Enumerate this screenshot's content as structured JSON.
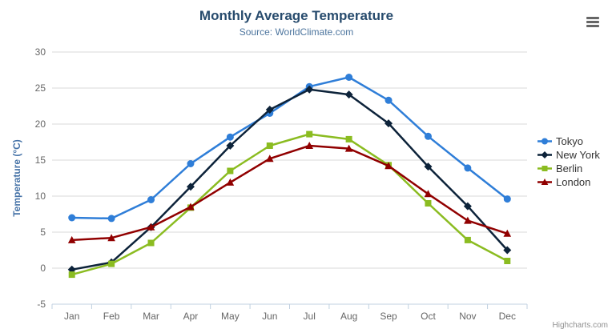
{
  "chart_data": {
    "type": "line",
    "title": "Monthly Average Temperature",
    "subtitle": "Source: WorldClimate.com",
    "xlabel": "",
    "ylabel": "Temperature (°C)",
    "ylim": [
      -5,
      30
    ],
    "yticks": [
      -5,
      0,
      5,
      10,
      15,
      20,
      25,
      30
    ],
    "grid": true,
    "legend_position": "right",
    "categories": [
      "Jan",
      "Feb",
      "Mar",
      "Apr",
      "May",
      "Jun",
      "Jul",
      "Aug",
      "Sep",
      "Oct",
      "Nov",
      "Dec"
    ],
    "series": [
      {
        "name": "Tokyo",
        "color": "#2f7ed8",
        "marker": "circle",
        "values": [
          7.0,
          6.9,
          9.5,
          14.5,
          18.2,
          21.5,
          25.2,
          26.5,
          23.3,
          18.3,
          13.9,
          9.6
        ]
      },
      {
        "name": "New York",
        "color": "#0d233a",
        "marker": "diamond",
        "values": [
          -0.2,
          0.8,
          5.7,
          11.3,
          17.0,
          22.0,
          24.8,
          24.1,
          20.1,
          14.1,
          8.6,
          2.5
        ]
      },
      {
        "name": "Berlin",
        "color": "#8bbc21",
        "marker": "square",
        "values": [
          -0.9,
          0.6,
          3.5,
          8.4,
          13.5,
          17.0,
          18.6,
          17.9,
          14.3,
          9.0,
          3.9,
          1.0
        ]
      },
      {
        "name": "London",
        "color": "#910000",
        "marker": "triangle",
        "values": [
          3.9,
          4.2,
          5.7,
          8.5,
          11.9,
          15.2,
          17.0,
          16.6,
          14.2,
          10.3,
          6.6,
          4.8
        ]
      }
    ]
  },
  "credits": {
    "text": "Highcharts.com"
  },
  "colors": {
    "grid": "#d8d8d8",
    "axis_line": "#c0d0e0",
    "axis_label": "#666666",
    "axis_title": "#4572a7",
    "title": "#274b6d",
    "subtitle": "#4d759e"
  },
  "icons": {
    "context_menu": "hamburger-icon"
  }
}
